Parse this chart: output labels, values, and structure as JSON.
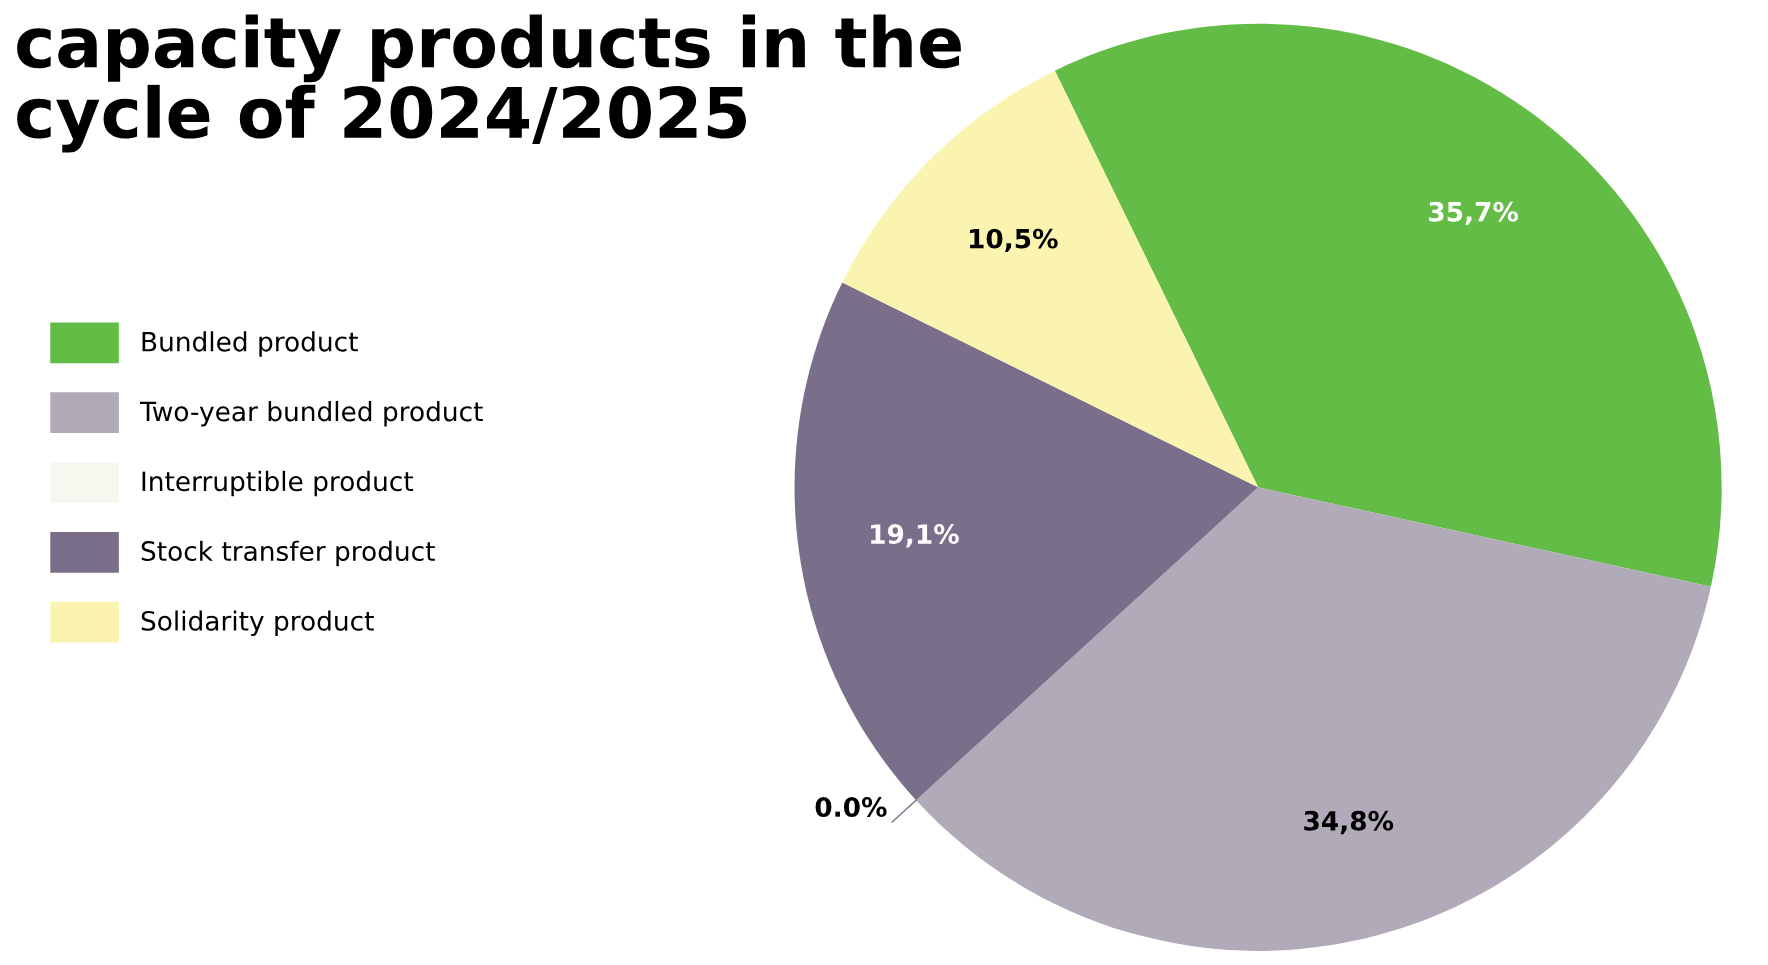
{
  "chart_data": {
    "type": "pie",
    "title": "capacity products in the\ncycle of 2024/2025",
    "categories": [
      "Bundled product",
      "Two-year bundled product",
      "Interruptible product",
      "Stock transfer product",
      "Solidarity product"
    ],
    "values": [
      35.7,
      34.8,
      0.0,
      19.1,
      10.5
    ],
    "value_labels": [
      "35,7%",
      "34,8%",
      "0.0%",
      "19,1%",
      "10,5%"
    ],
    "colors": [
      "#63bc46",
      "#b1abb9",
      "#f4f8ee",
      "#7a6f8a",
      "#fbf4b0"
    ],
    "legend": "left"
  }
}
